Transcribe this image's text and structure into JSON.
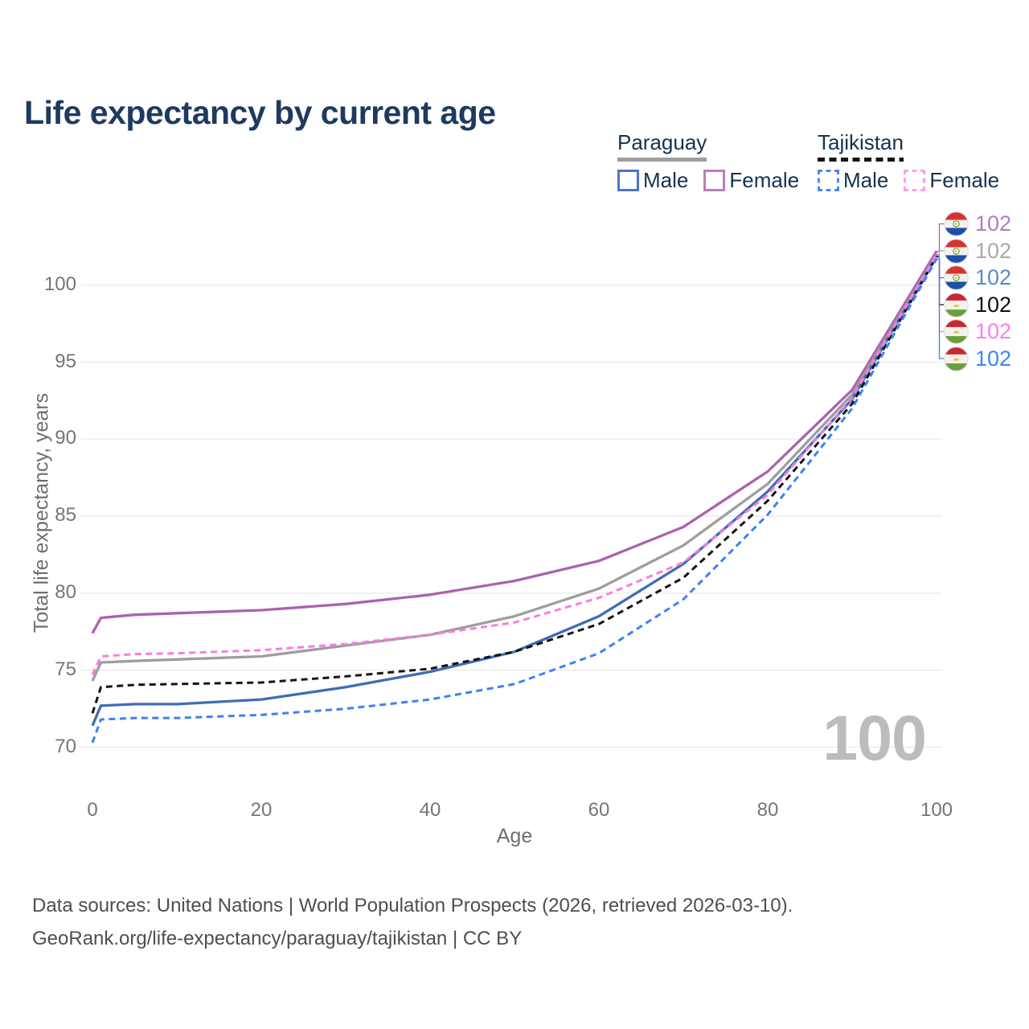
{
  "header": {
    "title": "Life expectancy by current age"
  },
  "legend": {
    "groups": [
      {
        "label": "Paraguay",
        "line_style": "solid",
        "underline_color": "#9e9e9e",
        "items": [
          {
            "label": "Male",
            "color": "#4a77c0",
            "dashed": false
          },
          {
            "label": "Female",
            "color": "#b77fbe",
            "dashed": false
          }
        ]
      },
      {
        "label": "Tajikistan",
        "line_style": "dashed",
        "underline_color": "#151515",
        "items": [
          {
            "label": "Male",
            "color": "#4b8bf5",
            "dashed": true
          },
          {
            "label": "Female",
            "color": "#fb9ef0",
            "dashed": true
          }
        ]
      }
    ]
  },
  "chart_data": {
    "type": "line",
    "title": "Life expectancy by current age",
    "xlabel": "Age",
    "ylabel": "Total life expectancy, years",
    "xticks": [
      0,
      20,
      40,
      60,
      80,
      100
    ],
    "yticks": [
      70,
      75,
      80,
      85,
      90,
      95,
      100
    ],
    "xlim": [
      0,
      100
    ],
    "ylim": [
      68.5,
      103.5
    ],
    "grid": true,
    "legend_position": "top-right",
    "ages": [
      0,
      1,
      5,
      10,
      20,
      30,
      40,
      50,
      60,
      70,
      80,
      90,
      100
    ],
    "series": [
      {
        "name": "Paraguay Female",
        "country": "Paraguay",
        "sex": "Female",
        "color": "#ab62ae",
        "dashed": false,
        "end_label": "102",
        "label_color": "#b07cc0",
        "values": [
          77.4,
          78.4,
          78.6,
          78.7,
          78.9,
          79.3,
          79.9,
          80.8,
          82.1,
          84.3,
          87.9,
          93.2,
          102.2
        ]
      },
      {
        "name": "Paraguay Both sexes",
        "country": "Paraguay",
        "sex": "Both",
        "color": "#9e9e9e",
        "dashed": false,
        "end_label": "102",
        "label_color": "#aaaaaa",
        "values": [
          74.3,
          75.5,
          75.6,
          75.7,
          75.9,
          76.6,
          77.3,
          78.5,
          80.3,
          83.1,
          87.1,
          92.9,
          102.0
        ]
      },
      {
        "name": "Paraguay Male",
        "country": "Paraguay",
        "sex": "Male",
        "color": "#3e6db5",
        "dashed": false,
        "end_label": "102",
        "label_color": "#5e87c9",
        "values": [
          71.4,
          72.7,
          72.8,
          72.8,
          73.1,
          73.9,
          74.9,
          76.2,
          78.5,
          81.9,
          86.6,
          92.6,
          101.9
        ]
      },
      {
        "name": "Tajikistan Both sexes",
        "country": "Tajikistan",
        "sex": "Both",
        "color": "#141414",
        "dashed": true,
        "end_label": "102",
        "label_color": "#111111",
        "values": [
          72.2,
          73.9,
          74.05,
          74.1,
          74.2,
          74.6,
          75.1,
          76.2,
          78.0,
          81.0,
          86.0,
          92.3,
          101.85
        ]
      },
      {
        "name": "Tajikistan Female",
        "country": "Tajikistan",
        "sex": "Female",
        "color": "#f97ce1",
        "dashed": true,
        "end_label": "102",
        "label_color": "#fb80ea",
        "values": [
          74.7,
          75.9,
          76.05,
          76.1,
          76.3,
          76.7,
          77.3,
          78.1,
          79.7,
          82.0,
          86.4,
          92.7,
          101.95
        ]
      },
      {
        "name": "Tajikistan Male",
        "country": "Tajikistan",
        "sex": "Male",
        "color": "#3b82f2",
        "dashed": true,
        "end_label": "102",
        "label_color": "#3d85f6",
        "values": [
          70.3,
          71.8,
          71.9,
          71.9,
          72.1,
          72.5,
          73.1,
          74.1,
          76.1,
          79.6,
          85.1,
          92.0,
          101.7
        ]
      }
    ]
  },
  "age_indicator": "100",
  "footer": {
    "line1": "Data sources: United Nations | World Population Prospects (2026, retrieved 2026-03-10).",
    "line2": "GeoRank.org/life-expectancy/paraguay/tajikistan | CC BY"
  }
}
